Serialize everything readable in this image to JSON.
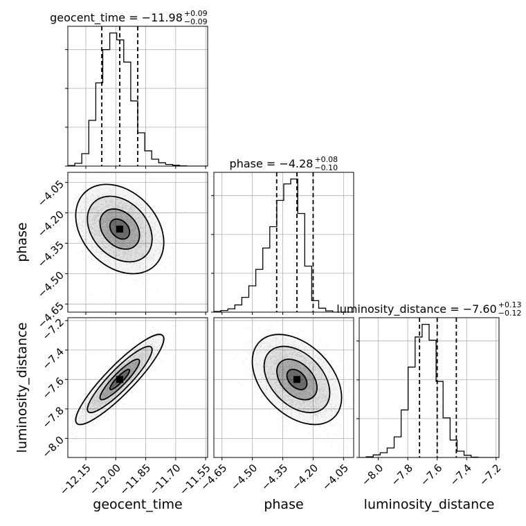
{
  "chart_data": {
    "type": "corner",
    "parameters": [
      "geocent_time",
      "phase",
      "luminosity_distance"
    ],
    "axis_labels": [
      "geocent_time",
      "phase",
      "luminosity_distance"
    ],
    "titles": [
      {
        "prefix": "geocent_time = −11.98",
        "plus": "+0.09",
        "minus": "−0.09"
      },
      {
        "prefix": "phase = −4.28",
        "plus": "+0.08",
        "minus": "−0.10"
      },
      {
        "prefix": "luminosity_distance = −7.60",
        "plus": "+0.13",
        "minus": "−0.12"
      }
    ],
    "ranges": [
      [
        -12.24,
        -11.54
      ],
      [
        -4.69,
        -4.0
      ],
      [
        -8.13,
        -7.18
      ]
    ],
    "median": [
      -11.98,
      -4.28,
      -7.6
    ],
    "quantiles_low": [
      -12.07,
      -4.38,
      -7.72
    ],
    "quantiles_high": [
      -11.89,
      -4.2,
      -7.47
    ],
    "ticks": [
      {
        "values": [
          -12.15,
          -12.0,
          -11.85,
          -11.7,
          -11.55
        ],
        "labels": [
          "−12.15",
          "−12.00",
          "−11.85",
          "−11.70",
          "−11.55"
        ]
      },
      {
        "values": [
          -4.65,
          -4.5,
          -4.35,
          -4.2,
          -4.05
        ],
        "labels": [
          "−4.65",
          "−4.50",
          "−4.35",
          "−4.20",
          "−4.05"
        ]
      },
      {
        "values": [
          -8.0,
          -7.8,
          -7.6,
          -7.4,
          -7.2
        ],
        "labels": [
          "−8.0",
          "−7.8",
          "−7.6",
          "−7.4",
          "−7.2"
        ]
      }
    ],
    "histograms": [
      [
        2,
        10,
        45,
        165,
        300,
        420,
        480,
        455,
        375,
        235,
        120,
        55,
        25,
        12,
        6,
        3,
        1,
        0,
        0,
        0
      ],
      [
        2,
        5,
        10,
        22,
        45,
        80,
        130,
        195,
        260,
        340,
        390,
        405,
        300,
        140,
        35,
        12,
        4,
        0,
        0,
        0
      ],
      [
        0,
        2,
        8,
        15,
        30,
        65,
        150,
        285,
        380,
        420,
        370,
        240,
        125,
        55,
        20,
        7,
        1,
        0,
        0,
        0
      ]
    ],
    "correlations": {
      "1_0": -0.3,
      "2_0": 0.9,
      "2_1": -0.4
    },
    "grid": true
  }
}
